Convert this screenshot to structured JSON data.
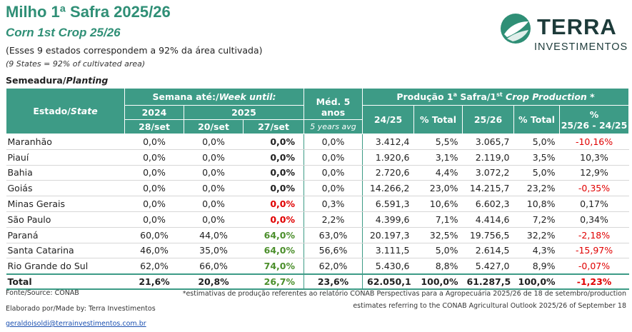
{
  "title": "Milho 1ª Safra 2025/26",
  "subtitle": "Corn 1st Crop 25/26",
  "note_pt": "(Esses 9 estados correspondem a 92% da área cultivada)",
  "note_en": "(9 States = 92% of cultivated area)",
  "section_pt": "Semeadura/",
  "section_en": "Planting",
  "logo": {
    "word": "TERRA",
    "sub": "INVESTIMENTOS",
    "icon": "terra-leaf-icon"
  },
  "headers": {
    "state_pt": "Estado/",
    "state_en": "State",
    "week_pt": "Semana até:/",
    "week_en": "Week until:",
    "y2024": "2024",
    "y2025": "2025",
    "d1": "28/set",
    "d2": "20/set",
    "d3": "27/set",
    "avg_pt": "Méd. 5 anos",
    "avg_en": "5 years avg",
    "prod_pt": "Produção 1",
    "prod_sup1": "a",
    "prod_mid": " Safra/1",
    "prod_sup2": "st",
    "prod_en": "  Crop Production *",
    "c2425": "24/25",
    "pct_total_1": "% Total",
    "c2526": "25/26",
    "pct_total_2": "% Total",
    "pct_head": "%",
    "pct_sub": "25/26 - 24/25"
  },
  "rows": [
    {
      "state": "Maranhão",
      "w2024": "0,0%",
      "w2025a": "0,0%",
      "w2025b": "0,0%",
      "avg": "0,0%",
      "p2425": "3.412,4",
      "pt1": "5,5%",
      "p2526": "3.065,7",
      "pt2": "5,0%",
      "chg": "-10,16%"
    },
    {
      "state": "Piauí",
      "w2024": "0,0%",
      "w2025a": "0,0%",
      "w2025b": "0,0%",
      "avg": "0,0%",
      "p2425": "1.920,6",
      "pt1": "3,1%",
      "p2526": "2.119,0",
      "pt2": "3,5%",
      "chg": "10,3%"
    },
    {
      "state": "Bahia",
      "w2024": "0,0%",
      "w2025a": "0,0%",
      "w2025b": "0,0%",
      "avg": "0,0%",
      "p2425": "2.720,6",
      "pt1": "4,4%",
      "p2526": "3.072,2",
      "pt2": "5,0%",
      "chg": "12,9%"
    },
    {
      "state": "Goiás",
      "w2024": "0,0%",
      "w2025a": "0,0%",
      "w2025b": "0,0%",
      "avg": "0,0%",
      "p2425": "14.266,2",
      "pt1": "23,0%",
      "p2526": "14.215,7",
      "pt2": "23,2%",
      "chg": "-0,35%"
    },
    {
      "state": "Minas Gerais",
      "w2024": "0,0%",
      "w2025a": "0,0%",
      "w2025b": "0,0%",
      "avg": "0,3%",
      "p2425": "6.591,3",
      "pt1": "10,6%",
      "p2526": "6.602,3",
      "pt2": "10,8%",
      "chg": "0,17%"
    },
    {
      "state": "São Paulo",
      "w2024": "0,0%",
      "w2025a": "0,0%",
      "w2025b": "0,0%",
      "avg": "2,2%",
      "p2425": "4.399,6",
      "pt1": "7,1%",
      "p2526": "4.414,6",
      "pt2": "7,2%",
      "chg": "0,34%"
    },
    {
      "state": "Paraná",
      "w2024": "60,0%",
      "w2025a": "44,0%",
      "w2025b": "64,0%",
      "avg": "63,0%",
      "p2425": "20.197,3",
      "pt1": "32,5%",
      "p2526": "19.756,5",
      "pt2": "32,2%",
      "chg": "-2,18%"
    },
    {
      "state": "Santa Catarina",
      "w2024": "46,0%",
      "w2025a": "35,0%",
      "w2025b": "64,0%",
      "avg": "56,6%",
      "p2425": "3.111,5",
      "pt1": "5,0%",
      "p2526": "2.614,5",
      "pt2": "4,3%",
      "chg": "-15,97%"
    },
    {
      "state": "Rio Grande do Sul",
      "w2024": "62,0%",
      "w2025a": "66,0%",
      "w2025b": "74,0%",
      "avg": "62,0%",
      "p2425": "5.430,6",
      "pt1": "8,8%",
      "p2526": "5.427,0",
      "pt2": "8,9%",
      "chg": "-0,07%"
    }
  ],
  "total": {
    "state": "Total",
    "w2024": "21,6%",
    "w2025a": "20,8%",
    "w2025b": "26,7%",
    "avg": "23,6%",
    "p2425": "62.050,1",
    "pt1": "100,0%",
    "p2526": "61.287,5",
    "pt2": "100,0%",
    "chg": "-1,23%"
  },
  "footer": {
    "source": "Fonte/Source: CONAB",
    "made_by": "Elaborado por/Made by: Terra Investimentos",
    "email": "geraldoisoldi@terrainvestimentos.com.br",
    "note_line1": "*estimativas de produção referentes ao relatório CONAB Perspectivas para a Agropecuária 2025/26 de 18 de setembro/production",
    "note_line2": "estimates referring to the CONAB Agricultural Outlook 2025/26 of September 18"
  },
  "colors": {
    "brand": "#2f8f76",
    "header_bg": "#3d9b86",
    "negative": "#e00000",
    "positive": "#4c8f2c"
  }
}
